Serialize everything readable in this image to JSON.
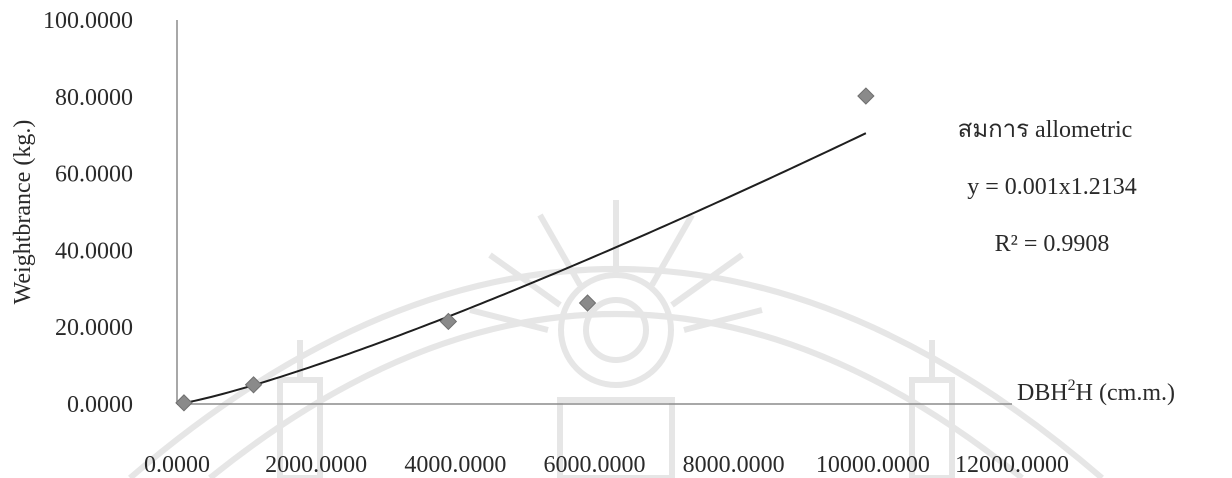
{
  "chart_data": {
    "type": "scatter",
    "title": "",
    "xlabel_main": "DBH",
    "xlabel_sup": "2",
    "xlabel_rest": "H (cm.m.)",
    "ylabel": "Weightbrance (kg.)",
    "xlim": [
      0,
      12000
    ],
    "ylim": [
      0,
      100
    ],
    "x_ticks": [
      0,
      2000,
      4000,
      6000,
      8000,
      10000,
      12000
    ],
    "x_tick_labels": [
      "0.0000",
      "2000.0000",
      "4000.0000",
      "6000.0000",
      "8000.0000",
      "10000.0000",
      "12000.0000"
    ],
    "y_ticks": [
      0,
      20,
      40,
      60,
      80,
      100
    ],
    "y_tick_labels": [
      "0.0000",
      "20.0000",
      "40.0000",
      "60.0000",
      "80.0000",
      "100.0000"
    ],
    "grid": false,
    "marker": "diamond",
    "marker_color": "#8a8a8a",
    "line_color": "#1f1f1f",
    "series": [
      {
        "points": [
          {
            "x": 100,
            "y": 0.3
          },
          {
            "x": 1100,
            "y": 5.0
          },
          {
            "x": 3900,
            "y": 21.5
          },
          {
            "x": 5900,
            "y": 26.3
          },
          {
            "x": 9900,
            "y": 80.2
          }
        ]
      }
    ],
    "trendline": {
      "type": "power",
      "coefficient": 0.001,
      "exponent": 1.2134,
      "x_range": [
        0,
        9900
      ]
    },
    "annotations": {
      "line1": "สมการ allometric",
      "line2": "y = 0.001x1.2134",
      "line3": "R² = 0.9908"
    }
  }
}
